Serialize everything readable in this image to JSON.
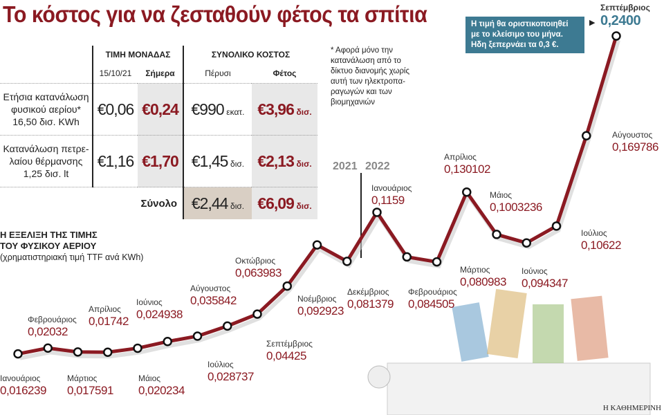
{
  "title": "Το κόστος για να ζεσταθούν φέτος τα σπίτια",
  "table": {
    "group_unit": "ΤΙΜΗ ΜΟΝΑΔΑΣ",
    "group_total": "ΣΥΝΟΛΙΚΟ ΚΟΣΤΟΣ",
    "col_date": "15/10/21",
    "col_today": "Σήμερα",
    "col_last": "Πέρυσι",
    "col_this": "Φέτος",
    "rows": [
      {
        "label": "Ετήσια κατανάλωση φυσικού αερίου* 16,50 δισ. KWh",
        "unit_then": "€0,06",
        "unit_now": "€0,24",
        "last": "€990",
        "last_unit": "εκατ.",
        "this": "€3,96",
        "this_unit": "δισ."
      },
      {
        "label": "Κατανάλωση πετρε-λαίου θέρμανσης 1,25 δισ. lt",
        "unit_then": "€1,16",
        "unit_now": "€1,70",
        "last": "€1,45",
        "last_unit": "δισ.",
        "this": "€2,13",
        "this_unit": "δισ."
      }
    ],
    "total_label": "Σύνολο",
    "total_last": "€2,44",
    "total_last_unit": "δισ.",
    "total_this": "€6,09",
    "total_this_unit": "δισ."
  },
  "note": "* Αφορά μόνο την κατανάλωση από το δίκτυο διανομής χωρίς αυτή των ηλεκτροπα-ραγωγών και των βιομηχανιών",
  "callout": "Η τιμή θα οριστικοποιηθεί με το κλείσιμο του μήνα. Ηδη ξεπερνάει τα 0,3 €.",
  "subtitle_1": "Η ΕΞΕΛΙΞΗ ΤΗΣ ΤΙΜΗΣ",
  "subtitle_2": "ΤΟΥ ΦΥΣΙΚΟΥ ΑΕΡΙΟΥ",
  "subtitle_3": "(χρηματιστηριακή τιμή TTF ανά KWh)",
  "credit": "Η ΚΑΘΗΜΕΡΙΝΗ",
  "colors": {
    "line": "#8b1a22",
    "highlight": "#3d7a92"
  },
  "chart_data": {
    "type": "line",
    "year_labels": [
      "2021",
      "2022"
    ],
    "categories": [
      "Ιανουάριος",
      "Φεβρουάριος",
      "Μάρτιος",
      "Απρίλιος",
      "Μάιος",
      "Ιούνιος",
      "Ιούλιος",
      "Αύγουστος",
      "Σεπτέμβριος",
      "Οκτώβριος",
      "Νοέμβριος",
      "Δεκέμβριος",
      "Ιανουάριος",
      "Φεβρουάριος",
      "Μάρτιος",
      "Απρίλιος",
      "Μάιος",
      "Ιούνιος",
      "Ιούλιος",
      "Αύγουστος",
      "Σεπτέμβριος"
    ],
    "labels": [
      "0,016239",
      "0,02032",
      "0,017591",
      "0,01742",
      "0,020234",
      "0,024938",
      "0,028737",
      "0,035842",
      "0,04425",
      "0,063983",
      "0,092923",
      "0,081379",
      "0,1159",
      "0,084505",
      "0,080983",
      "0,130102",
      "0,1003236",
      "0,094347",
      "0,10622",
      "0,169786",
      "0,2400"
    ],
    "values": [
      0.016239,
      0.02032,
      0.017591,
      0.01742,
      0.020234,
      0.024938,
      0.028737,
      0.035842,
      0.04425,
      0.063983,
      0.092923,
      0.081379,
      0.1159,
      0.084505,
      0.080983,
      0.130102,
      0.1003236,
      0.094347,
      0.10622,
      0.169786,
      0.24
    ]
  }
}
